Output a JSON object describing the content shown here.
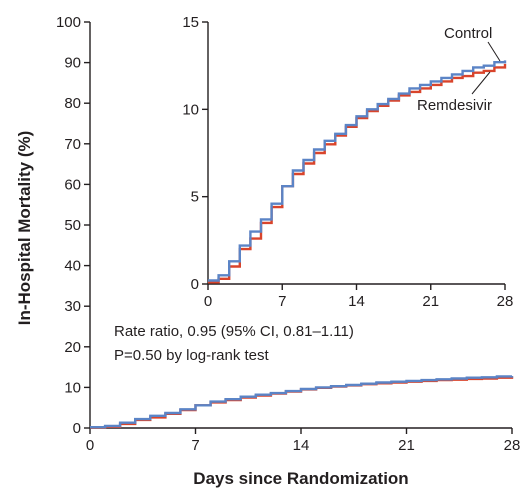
{
  "chart_data": {
    "type": "line",
    "step": true,
    "xlabel": "Days since Randomization",
    "ylabel": "In-Hospital Mortality (%)",
    "xlim": [
      0,
      28
    ],
    "ylim": [
      0,
      100
    ],
    "xticks": [
      0,
      7,
      14,
      21,
      28
    ],
    "yticks": [
      0,
      10,
      20,
      30,
      40,
      50,
      60,
      70,
      80,
      90,
      100
    ],
    "annotations": [
      "Rate ratio, 0.95 (95% CI, 0.81–1.11)",
      "P=0.50 by log-rank test"
    ],
    "series": [
      {
        "name": "Remdesivir",
        "color": "#d9442b",
        "x": [
          0,
          1,
          2,
          3,
          4,
          5,
          6,
          7,
          8,
          9,
          10,
          11,
          12,
          13,
          14,
          15,
          16,
          17,
          18,
          19,
          20,
          21,
          22,
          23,
          24,
          25,
          26,
          27,
          28
        ],
        "y": [
          0.1,
          0.3,
          1.0,
          2.0,
          2.6,
          3.5,
          4.4,
          5.6,
          6.3,
          6.9,
          7.5,
          8.0,
          8.5,
          9.0,
          9.5,
          9.9,
          10.2,
          10.5,
          10.8,
          11.0,
          11.2,
          11.4,
          11.6,
          11.8,
          11.9,
          12.1,
          12.2,
          12.4,
          12.6
        ]
      },
      {
        "name": "Control",
        "color": "#5b84c6",
        "x": [
          0,
          1,
          2,
          3,
          4,
          5,
          6,
          7,
          8,
          9,
          10,
          11,
          12,
          13,
          14,
          15,
          16,
          17,
          18,
          19,
          20,
          21,
          22,
          23,
          24,
          25,
          26,
          27,
          28
        ],
        "y": [
          0.2,
          0.5,
          1.3,
          2.2,
          3.0,
          3.7,
          4.6,
          5.6,
          6.5,
          7.1,
          7.7,
          8.2,
          8.6,
          9.1,
          9.6,
          10.0,
          10.3,
          10.6,
          10.9,
          11.2,
          11.4,
          11.6,
          11.8,
          12.0,
          12.2,
          12.4,
          12.5,
          12.7,
          12.8
        ]
      }
    ],
    "inset": {
      "xlim": [
        0,
        28
      ],
      "ylim": [
        0,
        15
      ],
      "xticks": [
        0,
        7,
        14,
        21,
        28
      ],
      "yticks": [
        0,
        5,
        10,
        15
      ],
      "legend_labels": [
        "Control",
        "Remdesivir"
      ]
    }
  }
}
